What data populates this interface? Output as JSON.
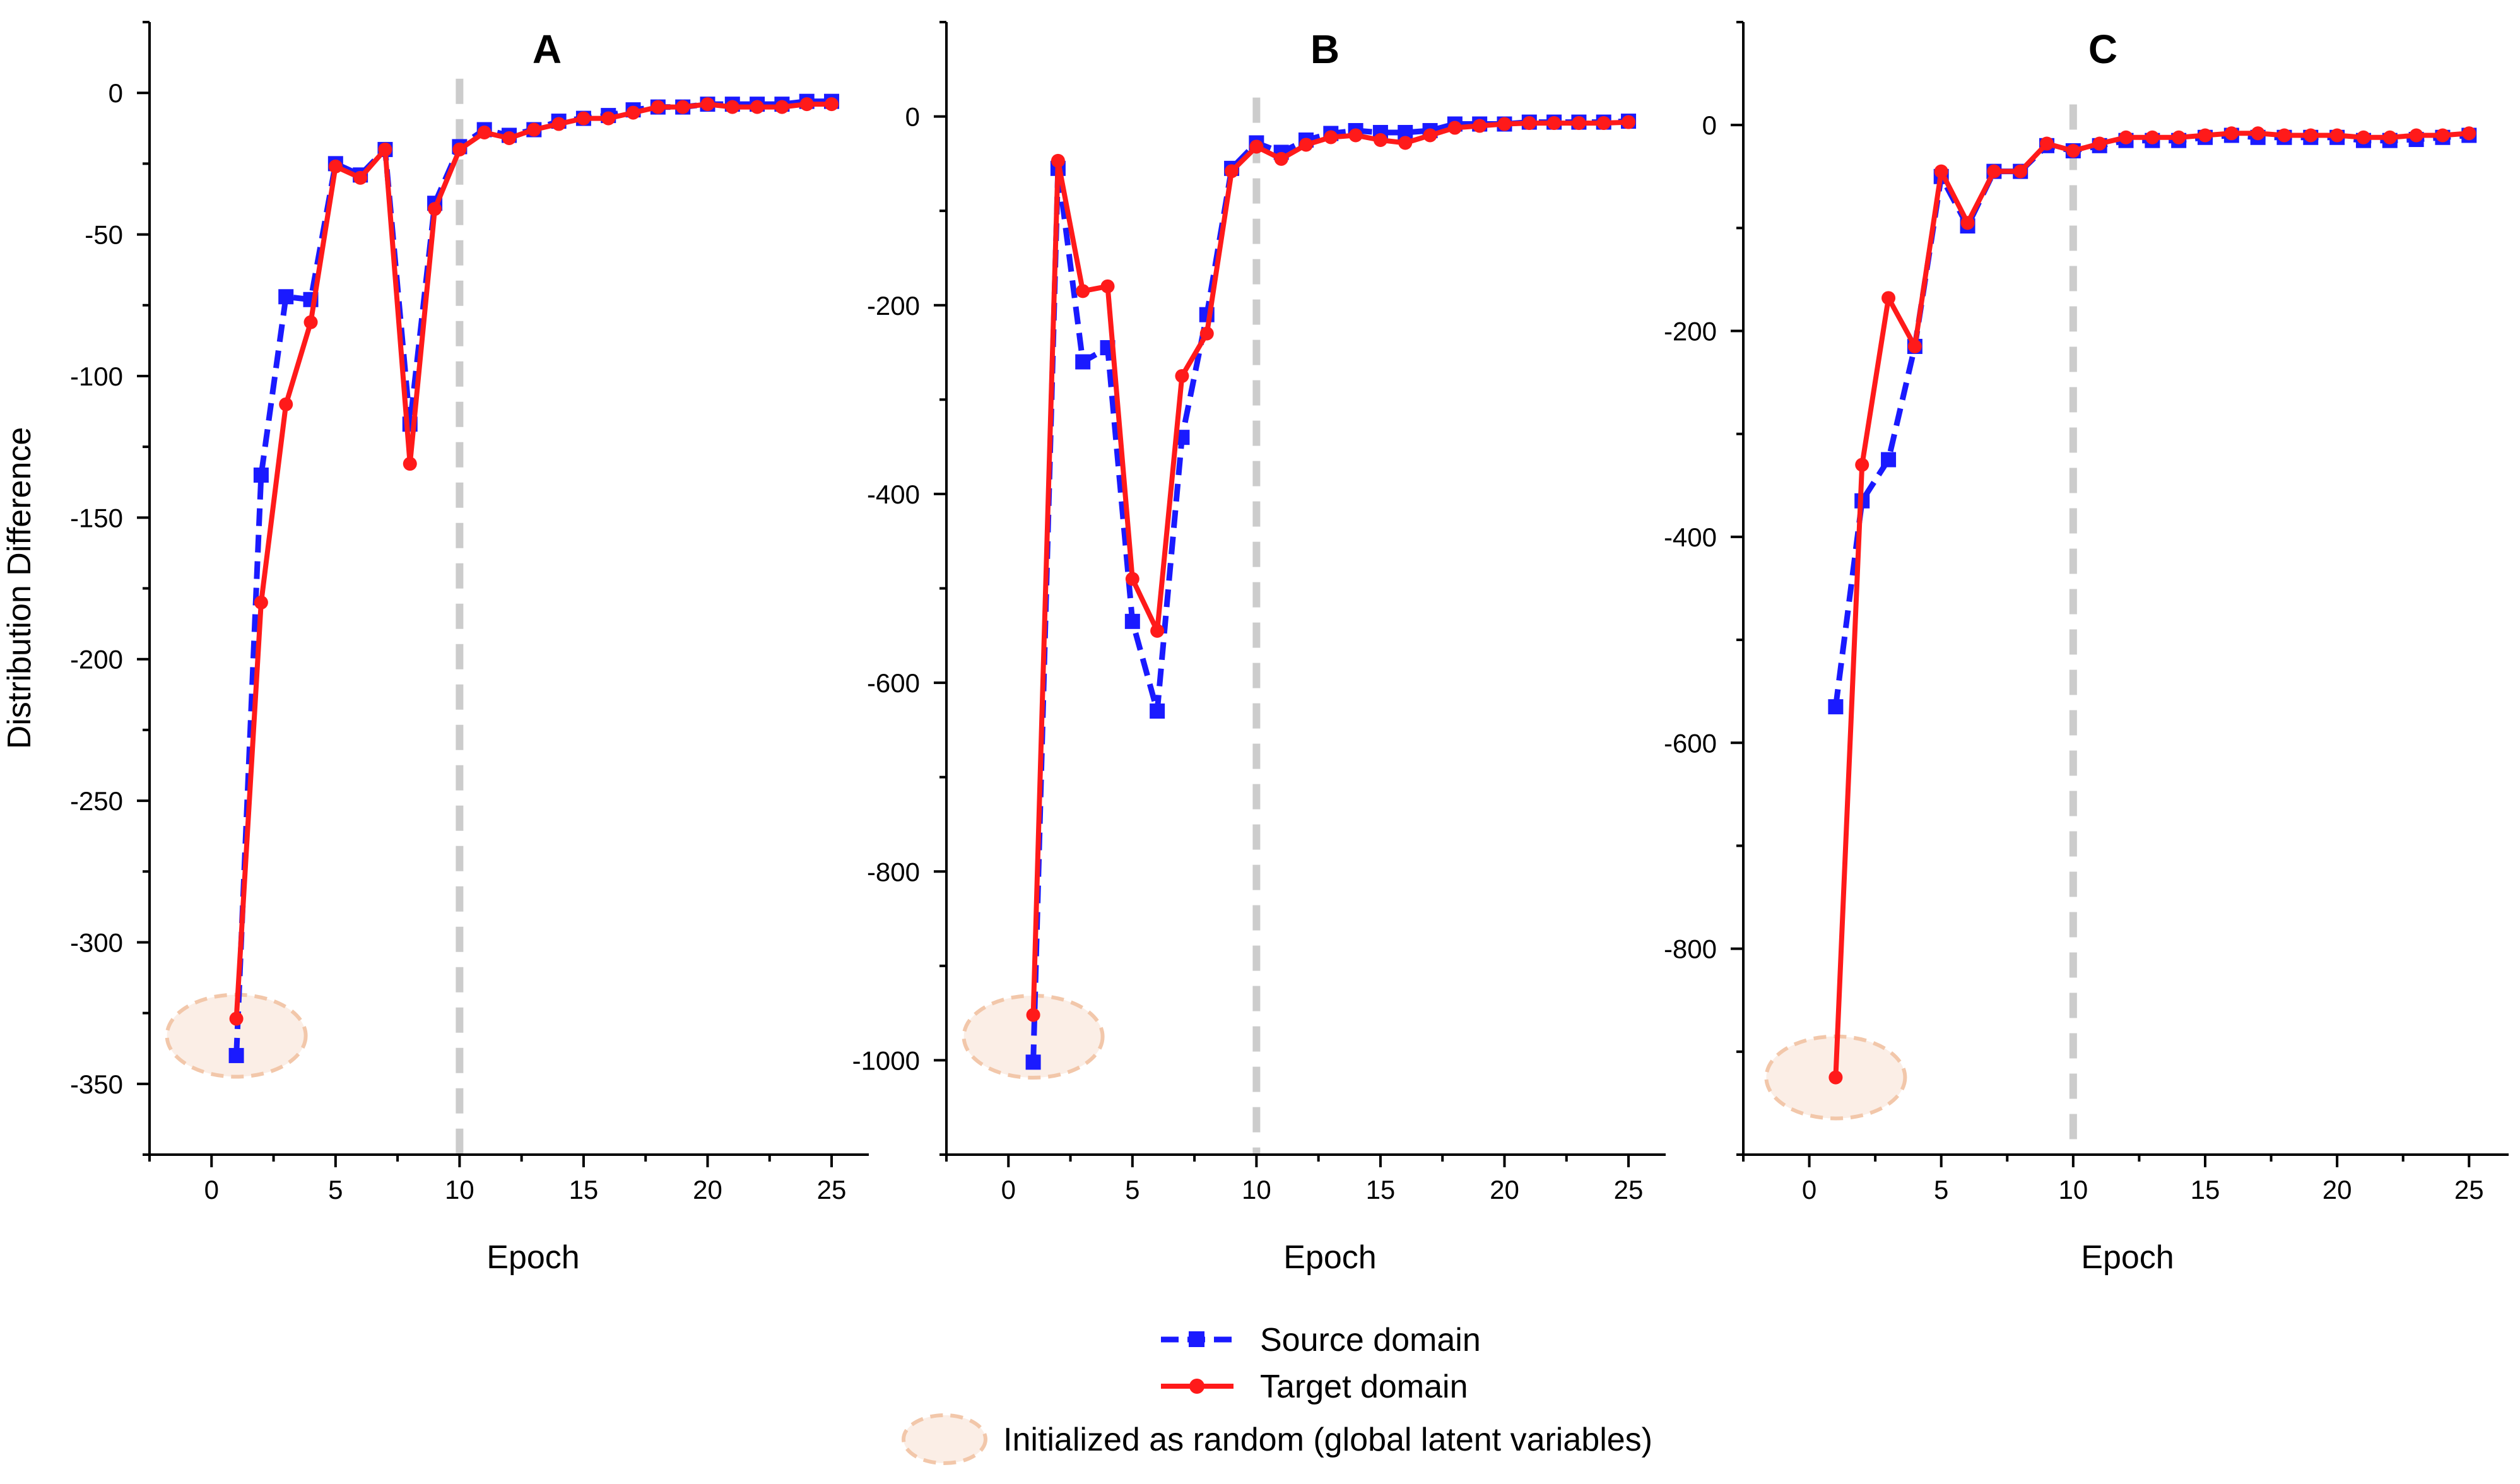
{
  "figure": {
    "ylabel": "Distribution Difference",
    "legend": [
      {
        "label": "Source domain",
        "color": "#1a1aff",
        "style": "dashed-square",
        "icon": "square-marker-icon"
      },
      {
        "label": "Target domain",
        "color": "#ff1a1a",
        "style": "solid-circle",
        "icon": "circle-marker-icon"
      },
      {
        "label": "Initialized as random (global latent variables)",
        "color": "#f2b48c",
        "style": "dashed-ellipse",
        "icon": "ellipse-icon"
      }
    ],
    "legend_position": "bottom-center",
    "reference_line": {
      "x": 10,
      "color": "#cccccc",
      "style": "dashed"
    }
  },
  "chart_data": [
    {
      "type": "line",
      "title": "A",
      "xlabel": "Epoch",
      "ylabel": "Distribution Difference",
      "xlim": [
        -2.5,
        26.5
      ],
      "ylim": [
        -375,
        25
      ],
      "xticks": [
        0,
        5,
        10,
        15,
        20,
        25
      ],
      "yticks": [
        0,
        -50,
        -100,
        -150,
        -200,
        -250,
        -300,
        -350
      ],
      "xtick_labels": [
        "0",
        "5",
        "10",
        "15",
        "20",
        "25"
      ],
      "ytick_labels": [
        "0",
        "-50",
        "-100",
        "-150",
        "-200",
        "-250",
        "-300",
        "-350"
      ],
      "highlight": {
        "x": 1,
        "y": -333
      },
      "series": [
        {
          "name": "Source domain",
          "x": [
            1,
            2,
            3,
            4,
            5,
            6,
            7,
            8,
            9,
            10,
            11,
            12,
            13,
            14,
            15,
            16,
            17,
            18,
            19,
            20,
            21,
            22,
            23,
            24,
            25
          ],
          "values": [
            -340,
            -135,
            -72,
            -73,
            -25,
            -29,
            -20,
            -117,
            -39,
            -19,
            -13,
            -15,
            -13,
            -10,
            -9,
            -8,
            -6,
            -5,
            -5,
            -4,
            -4,
            -4,
            -4,
            -3,
            -3
          ]
        },
        {
          "name": "Target domain",
          "x": [
            1,
            2,
            3,
            4,
            5,
            6,
            7,
            8,
            9,
            10,
            11,
            12,
            13,
            14,
            15,
            16,
            17,
            18,
            19,
            20,
            21,
            22,
            23,
            24,
            25
          ],
          "values": [
            -327,
            -180,
            -110,
            -81,
            -26,
            -30,
            -20,
            -131,
            -41,
            -20,
            -14,
            -16,
            -13,
            -11,
            -9,
            -9,
            -7,
            -5,
            -5,
            -4,
            -5,
            -5,
            -5,
            -4,
            -4
          ]
        }
      ]
    },
    {
      "type": "line",
      "title": "B",
      "xlabel": "Epoch",
      "ylabel": "",
      "xlim": [
        -2.5,
        26.5
      ],
      "ylim": [
        -1100,
        100
      ],
      "xticks": [
        0,
        5,
        10,
        15,
        20,
        25
      ],
      "yticks": [
        0,
        -200,
        -400,
        -600,
        -800,
        -1000
      ],
      "xtick_labels": [
        "0",
        "5",
        "10",
        "15",
        "20",
        "25"
      ],
      "ytick_labels": [
        "0",
        "-200",
        "-400",
        "-600",
        "-800",
        "-1000"
      ],
      "highlight": {
        "x": 1,
        "y": -975
      },
      "series": [
        {
          "name": "Source domain",
          "x": [
            1,
            2,
            3,
            4,
            5,
            6,
            7,
            8,
            9,
            10,
            11,
            12,
            13,
            14,
            15,
            16,
            17,
            18,
            19,
            20,
            21,
            22,
            23,
            24,
            25
          ],
          "values": [
            -1002,
            -55,
            -260,
            -245,
            -535,
            -630,
            -340,
            -210,
            -55,
            -28,
            -38,
            -25,
            -18,
            -15,
            -17,
            -17,
            -15,
            -8,
            -8,
            -8,
            -6,
            -6,
            -6,
            -6,
            -5
          ]
        },
        {
          "name": "Target domain",
          "x": [
            1,
            2,
            3,
            4,
            5,
            6,
            7,
            8,
            9,
            10,
            11,
            12,
            13,
            14,
            15,
            16,
            17,
            18,
            19,
            20,
            21,
            22,
            23,
            24,
            25
          ],
          "values": [
            -952,
            -47,
            -185,
            -180,
            -490,
            -545,
            -275,
            -230,
            -58,
            -32,
            -45,
            -30,
            -22,
            -20,
            -25,
            -28,
            -20,
            -12,
            -10,
            -8,
            -7,
            -7,
            -7,
            -7,
            -6
          ]
        }
      ]
    },
    {
      "type": "line",
      "title": "C",
      "xlabel": "Epoch",
      "ylabel": "",
      "xlim": [
        -2.5,
        26.5
      ],
      "ylim": [
        -1000,
        100
      ],
      "xticks": [
        0,
        5,
        10,
        15,
        20,
        25
      ],
      "yticks": [
        0,
        -200,
        -400,
        -600,
        -800
      ],
      "xtick_labels": [
        "0",
        "5",
        "10",
        "15",
        "20",
        "25"
      ],
      "ytick_labels": [
        "0",
        "-200",
        "-400",
        "-600",
        "-800"
      ],
      "highlight": {
        "x": 1,
        "y": -925
      },
      "series": [
        {
          "name": "Source domain",
          "x": [
            1,
            2,
            3,
            4,
            5,
            6,
            7,
            8,
            9,
            10,
            11,
            12,
            13,
            14,
            15,
            16,
            17,
            18,
            19,
            20,
            21,
            22,
            23,
            24,
            25
          ],
          "values": [
            -565,
            -365,
            -325,
            -215,
            -50,
            -98,
            -45,
            -45,
            -20,
            -25,
            -20,
            -15,
            -15,
            -15,
            -12,
            -10,
            -12,
            -12,
            -12,
            -12,
            -15,
            -15,
            -14,
            -12,
            -10
          ]
        },
        {
          "name": "Target domain",
          "x": [
            1,
            2,
            3,
            4,
            5,
            6,
            7,
            8,
            9,
            10,
            11,
            12,
            13,
            14,
            15,
            16,
            17,
            18,
            19,
            20,
            21,
            22,
            23,
            24,
            25
          ],
          "values": [
            -925,
            -330,
            -168,
            -215,
            -45,
            -95,
            -45,
            -45,
            -18,
            -25,
            -18,
            -12,
            -12,
            -12,
            -10,
            -8,
            -8,
            -10,
            -10,
            -10,
            -12,
            -12,
            -10,
            -10,
            -8
          ]
        }
      ]
    }
  ]
}
